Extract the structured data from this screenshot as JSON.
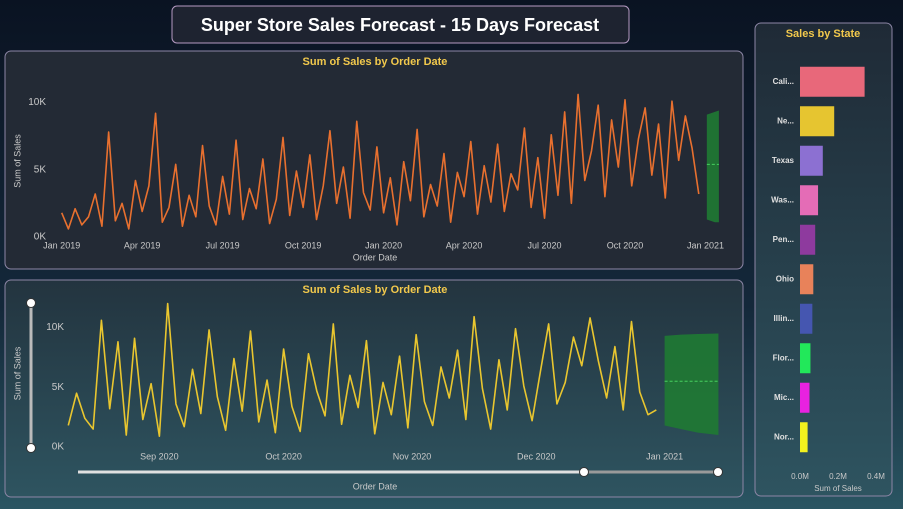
{
  "header": {
    "title": "Super Store Sales Forecast - 15 Days Forecast"
  },
  "chart_data": [
    {
      "type": "line",
      "title": "Sum of Sales by Order Date",
      "xlabel": "Order Date",
      "ylabel": "Sum of Sales",
      "color": "#e8702f",
      "x": [
        0,
        0.25,
        0.5,
        0.75,
        1,
        1.25,
        1.5,
        1.75,
        2,
        2.25,
        2.5,
        2.75,
        3,
        3.25,
        3.5,
        3.75,
        4,
        4.25,
        4.5,
        4.75,
        5,
        5.25,
        5.5,
        5.75,
        6,
        6.25,
        6.5,
        6.75,
        7,
        7.25,
        7.5,
        7.75,
        8,
        8.25,
        8.5,
        8.75,
        9,
        9.25,
        9.5,
        9.75,
        10,
        10.25,
        10.5,
        10.75,
        11,
        11.25,
        11.5,
        11.75,
        12,
        12.25,
        12.5,
        12.75,
        13,
        13.25,
        13.5,
        13.75,
        14,
        14.25,
        14.5,
        14.75,
        15,
        15.25,
        15.5,
        15.75,
        16,
        16.25,
        16.5,
        16.75,
        17,
        17.25,
        17.5,
        17.75,
        18,
        18.25,
        18.5,
        18.75,
        19,
        19.25,
        19.5,
        19.75,
        20,
        20.25,
        20.5,
        20.75,
        21,
        21.25,
        21.5,
        21.75,
        22,
        22.25,
        22.5,
        22.75,
        23,
        23.25,
        23.5,
        23.75
      ],
      "values": [
        1800,
        600,
        2100,
        900,
        1500,
        3200,
        800,
        7800,
        1200,
        2500,
        600,
        4200,
        1900,
        3800,
        9200,
        1100,
        2200,
        5400,
        800,
        3100,
        1500,
        6800,
        2300,
        900,
        4500,
        1700,
        7200,
        1300,
        3600,
        2100,
        5800,
        1000,
        2800,
        7400,
        1600,
        4900,
        2200,
        6100,
        1300,
        3800,
        7900,
        2500,
        5200,
        1400,
        8600,
        3300,
        2000,
        6700,
        1800,
        4400,
        900,
        5600,
        2700,
        8000,
        1500,
        3900,
        2300,
        6200,
        1100,
        4800,
        3000,
        7100,
        1700,
        5300,
        2600,
        6900,
        1900,
        4700,
        3500,
        8100,
        2200,
        5900,
        1400,
        7600,
        3100,
        9300,
        2500,
        10600,
        4200,
        6400,
        9800,
        3000,
        8700,
        5200,
        10200,
        3800,
        7300,
        9600,
        4600,
        8400,
        2900,
        10100,
        5700,
        9000,
        6600,
        3200
      ],
      "forecast": {
        "x": [
          24.05,
          24.2,
          24.35,
          24.5
        ],
        "values": [
          5400,
          5400,
          5400,
          5400
        ],
        "lower": [
          1300,
          1200,
          1100,
          1100
        ],
        "upper": [
          9100,
          9200,
          9300,
          9400
        ],
        "color": "#1f7a33"
      },
      "xlim": [
        -0.25,
        25.1
      ],
      "ylim": [
        0,
        11300
      ],
      "xticks": [
        {
          "value": 0,
          "label": "Jan 2019"
        },
        {
          "value": 3,
          "label": "Apr 2019"
        },
        {
          "value": 6,
          "label": "Jul 2019"
        },
        {
          "value": 9,
          "label": "Oct 2019"
        },
        {
          "value": 12,
          "label": "Jan 2020"
        },
        {
          "value": 15,
          "label": "Apr 2020"
        },
        {
          "value": 18,
          "label": "Jul 2020"
        },
        {
          "value": 21,
          "label": "Oct 2020"
        },
        {
          "value": 24,
          "label": "Jan 2021"
        }
      ],
      "yticks": [
        {
          "value": 0,
          "label": "0K"
        },
        {
          "value": 5000,
          "label": "5K"
        },
        {
          "value": 10000,
          "label": "10K"
        }
      ]
    },
    {
      "type": "line",
      "title": "Sum of Sales by Order Date",
      "xlabel": "Order Date",
      "ylabel": "Sum of Sales",
      "color": "#e9c62f",
      "x": [
        -22,
        -20,
        -18,
        -16,
        -14,
        -12,
        -10,
        -8,
        -6,
        -4,
        -2,
        0,
        2,
        4,
        6,
        8,
        10,
        12,
        14,
        16,
        18,
        20,
        22,
        24,
        26,
        28,
        30,
        32,
        34,
        36,
        38,
        40,
        42,
        44,
        46,
        48,
        50,
        52,
        54,
        56,
        58,
        60,
        62,
        64,
        66,
        68,
        70,
        72,
        74,
        76,
        78,
        80,
        82,
        84,
        86,
        88,
        90,
        92,
        94,
        96,
        98,
        100,
        102,
        104,
        106,
        108,
        110,
        112,
        114,
        116,
        118,
        120
      ],
      "values": [
        1800,
        4500,
        2400,
        1500,
        10600,
        3200,
        8800,
        1000,
        9100,
        2300,
        5300,
        900,
        12000,
        3600,
        1700,
        6500,
        2800,
        9800,
        4200,
        1400,
        7400,
        3000,
        9700,
        2100,
        5600,
        1200,
        8200,
        3400,
        1300,
        7800,
        4700,
        2600,
        10300,
        1900,
        6000,
        3300,
        8900,
        1100,
        5400,
        2700,
        7600,
        1600,
        9400,
        3800,
        1800,
        6700,
        4100,
        8100,
        2300,
        10900,
        4900,
        1500,
        7300,
        3100,
        9900,
        5100,
        2200,
        6300,
        10300,
        3600,
        5400,
        9200,
        6800,
        10800,
        7200,
        4100,
        8400,
        3100,
        10500,
        4600,
        2700,
        3100
      ],
      "forecast": {
        "x": [
          122,
          126,
          130,
          135
        ],
        "values": [
          5500,
          5500,
          5500,
          5500
        ],
        "lower": [
          1800,
          1500,
          1200,
          1000
        ],
        "upper": [
          9300,
          9400,
          9450,
          9500
        ],
        "color": "#1f7a33"
      },
      "xlim": [
        -24,
        139
      ],
      "ylim": [
        0,
        12300
      ],
      "xticks": [
        {
          "value": 0,
          "label": "Sep 2020"
        },
        {
          "value": 30,
          "label": "Oct 2020"
        },
        {
          "value": 61,
          "label": "Nov 2020"
        },
        {
          "value": 91,
          "label": "Dec 2020"
        },
        {
          "value": 122,
          "label": "Jan 2021"
        }
      ],
      "yticks": [
        {
          "value": 0,
          "label": "0K"
        },
        {
          "value": 5000,
          "label": "5K"
        },
        {
          "value": 10000,
          "label": "10K"
        }
      ]
    },
    {
      "type": "bar",
      "orientation": "horizontal",
      "title": "Sales by State",
      "xlabel": "Sum of Sales",
      "categories": [
        "Cali...",
        "Ne...",
        "Texas",
        "Was...",
        "Pen...",
        "Ohio",
        "Illin...",
        "Flor...",
        "Mic...",
        "Nor..."
      ],
      "values": [
        340000,
        180000,
        120000,
        95000,
        80000,
        70000,
        65000,
        55000,
        50000,
        40000
      ],
      "colors": [
        "#e8687a",
        "#e6c530",
        "#8c70d2",
        "#e46cb6",
        "#8e3a9e",
        "#e8825a",
        "#4556b0",
        "#22e85a",
        "#e822e0",
        "#f2f21e"
      ],
      "xlim": [
        0,
        400000
      ],
      "xticks": [
        {
          "value": 0,
          "label": "0.0M"
        },
        {
          "value": 200000,
          "label": "0.2M"
        },
        {
          "value": 400000,
          "label": "0.4M"
        }
      ]
    }
  ]
}
